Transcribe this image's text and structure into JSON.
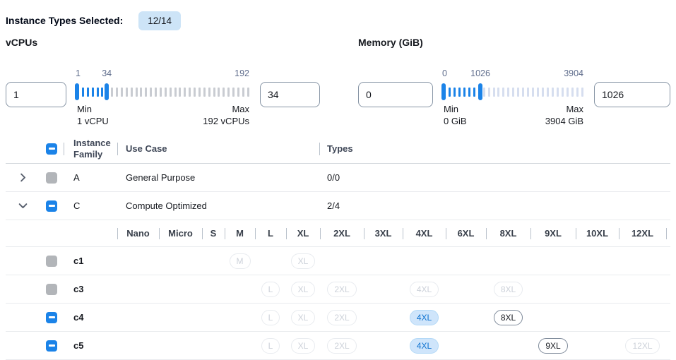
{
  "header": {
    "label": "Instance Types Selected:",
    "count_badge": "12/14"
  },
  "colors": {
    "accent": "#1b83e8",
    "count_badge_bg": "#cde4f7",
    "selected_badge_bg": "#cfe5fb",
    "selected_badge_text": "#0d72d0",
    "selected_badge_border": "#b3d9f7",
    "disabled_checkbox": "#b2b5b9"
  },
  "filters": [
    {
      "title": "vCPUs",
      "from_value": "1",
      "to_value": "34",
      "slider": {
        "min": 1,
        "max": 192,
        "from": 1,
        "to": 34,
        "labels": {
          "from": "1",
          "to": "34",
          "max": "192"
        },
        "inactive_tick_color": "#c9ccd2"
      },
      "min_caption": "Min",
      "min_value": "1 vCPU",
      "max_caption": "Max",
      "max_value": "192 vCPUs"
    },
    {
      "title": "Memory (GiB)",
      "from_value": "0",
      "to_value": "1026",
      "slider": {
        "min": 0,
        "max": 3904,
        "from": 0,
        "to": 1026,
        "labels": {
          "from": "0",
          "to": "1026",
          "max": "3904"
        },
        "inactive_tick_color": "#d6deef"
      },
      "min_caption": "Min",
      "min_value": "0 GiB",
      "max_caption": "Max",
      "max_value": "3904 GiB"
    }
  ],
  "table": {
    "columns": {
      "family": "Instance Family",
      "use_case": "Use Case",
      "types": "Types"
    },
    "size_columns": [
      "Nano",
      "Micro",
      "S",
      "M",
      "L",
      "XL",
      "2XL",
      "3XL",
      "4XL",
      "6XL",
      "8XL",
      "9XL",
      "10XL",
      "12XL"
    ],
    "families": [
      {
        "name": "A",
        "use_case": "General Purpose",
        "types": "0/0",
        "expanded": false,
        "checkbox": "disabled"
      },
      {
        "name": "C",
        "use_case": "Compute Optimized",
        "types": "2/4",
        "expanded": true,
        "checkbox": "indeterminate"
      }
    ],
    "instance_rows": [
      {
        "name": "c1",
        "checkbox": "disabled",
        "badges": [
          {
            "size": "M",
            "state": "disabled"
          },
          {
            "size": "XL",
            "state": "disabled"
          }
        ]
      },
      {
        "name": "c3",
        "checkbox": "disabled",
        "badges": [
          {
            "size": "L",
            "state": "disabled"
          },
          {
            "size": "XL",
            "state": "disabled"
          },
          {
            "size": "2XL",
            "state": "disabled"
          },
          {
            "size": "4XL",
            "state": "disabled"
          },
          {
            "size": "8XL",
            "state": "disabled"
          }
        ]
      },
      {
        "name": "c4",
        "checkbox": "indeterminate",
        "badges": [
          {
            "size": "L",
            "state": "disabled"
          },
          {
            "size": "XL",
            "state": "disabled"
          },
          {
            "size": "2XL",
            "state": "disabled"
          },
          {
            "size": "4XL",
            "state": "selected"
          },
          {
            "size": "8XL",
            "state": "enabled"
          }
        ]
      },
      {
        "name": "c5",
        "checkbox": "indeterminate",
        "badges": [
          {
            "size": "L",
            "state": "disabled"
          },
          {
            "size": "XL",
            "state": "disabled"
          },
          {
            "size": "2XL",
            "state": "disabled"
          },
          {
            "size": "4XL",
            "state": "selected"
          },
          {
            "size": "9XL",
            "state": "enabled"
          },
          {
            "size": "12XL",
            "state": "disabled"
          }
        ]
      }
    ]
  }
}
